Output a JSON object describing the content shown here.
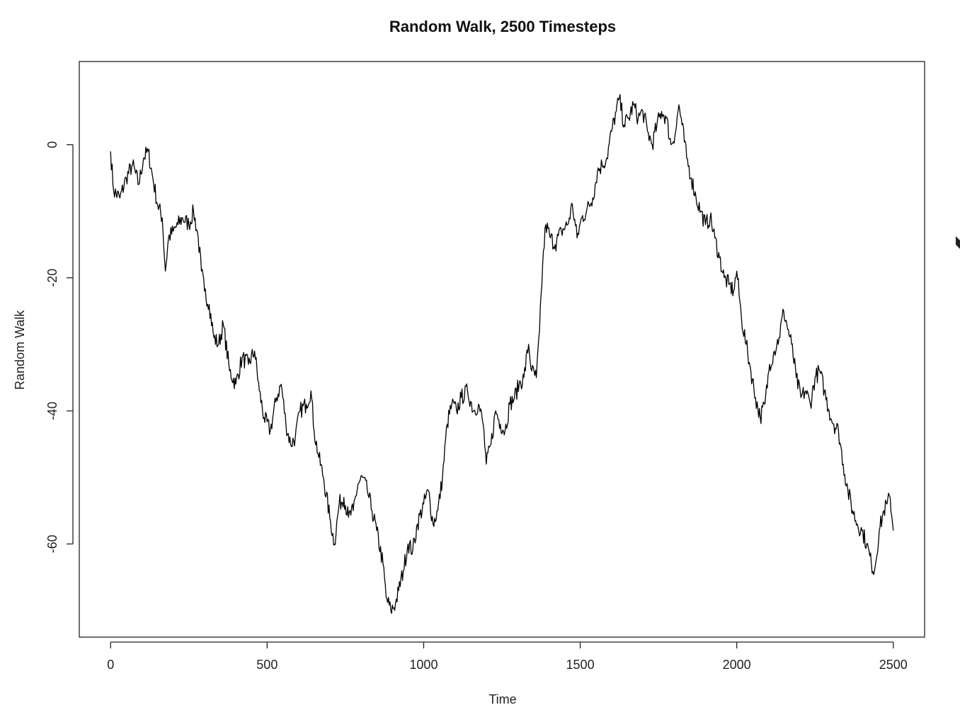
{
  "chart_data": {
    "type": "line",
    "title": "Random Walk, 2500 Timesteps",
    "xlabel": "Time",
    "ylabel": "Random Walk",
    "xlim": [
      -100,
      2600
    ],
    "ylim": [
      -74,
      12.5
    ],
    "xticks": [
      0,
      500,
      1000,
      1500,
      2000,
      2500
    ],
    "xtick_labels": [
      "0",
      "500",
      "1000",
      "1500",
      "2000",
      "2500"
    ],
    "yticks": [
      -60,
      -40,
      -20,
      0
    ],
    "ytick_labels": [
      "-60",
      "-40",
      "-20",
      "0"
    ],
    "grid": false,
    "legend": "none",
    "line_color": "#000000",
    "series": [
      {
        "x": [
          0,
          10,
          30,
          50,
          70,
          90,
          105,
          120,
          135,
          150,
          165,
          175,
          185,
          200,
          215,
          230,
          250,
          265,
          280,
          290,
          300,
          315,
          330,
          345,
          360,
          380,
          400,
          420,
          440,
          460,
          475,
          490,
          510,
          530,
          545,
          560,
          575,
          590,
          605,
          625,
          640,
          650,
          665,
          680,
          700,
          715,
          730,
          745,
          760,
          775,
          790,
          805,
          820,
          835,
          850,
          870,
          880,
          895,
          910,
          920,
          935,
          950,
          965,
          980,
          1000,
          1015,
          1030,
          1045,
          1060,
          1075,
          1090,
          1105,
          1120,
          1140,
          1160,
          1175,
          1190,
          1200,
          1215,
          1230,
          1245,
          1260,
          1275,
          1290,
          1305,
          1320,
          1335,
          1345,
          1360,
          1370,
          1380,
          1390,
          1405,
          1420,
          1440,
          1460,
          1475,
          1490,
          1505,
          1520,
          1540,
          1555,
          1570,
          1585,
          1600,
          1615,
          1625,
          1640,
          1655,
          1670,
          1685,
          1700,
          1715,
          1730,
          1745,
          1760,
          1775,
          1790,
          1805,
          1815,
          1825,
          1840,
          1855,
          1870,
          1885,
          1900,
          1915,
          1930,
          1945,
          1960,
          1975,
          1990,
          2000,
          2015,
          2030,
          2045,
          2060,
          2075,
          2090,
          2105,
          2120,
          2135,
          2150,
          2160,
          2175,
          2190,
          2205,
          2220,
          2235,
          2250,
          2265,
          2280,
          2295,
          2310,
          2325,
          2340,
          2355,
          2370,
          2385,
          2400,
          2415,
          2430,
          2440,
          2455,
          2470,
          2480,
          2490,
          2500
        ],
        "y": [
          -1,
          -7,
          -8,
          -5,
          -3,
          -6,
          -2,
          -1,
          -5,
          -9,
          -11,
          -19,
          -14,
          -13,
          -12,
          -11,
          -12,
          -10,
          -14,
          -19,
          -22,
          -24,
          -29,
          -30,
          -27,
          -34,
          -36,
          -32,
          -33,
          -31,
          -37,
          -41,
          -43,
          -38,
          -36,
          -42,
          -45,
          -44,
          -40,
          -39,
          -37,
          -43,
          -47,
          -50,
          -56,
          -60,
          -54,
          -53,
          -56,
          -55,
          -51,
          -50,
          -52,
          -55,
          -58,
          -63,
          -68,
          -70,
          -69,
          -67,
          -64,
          -60,
          -61,
          -57,
          -54,
          -52,
          -57,
          -55,
          -50,
          -42,
          -39,
          -40,
          -38,
          -37,
          -40,
          -39,
          -42,
          -48,
          -45,
          -40,
          -42,
          -43,
          -39,
          -38,
          -36,
          -35,
          -30,
          -34,
          -35,
          -28,
          -18,
          -12,
          -14,
          -15,
          -13,
          -12,
          -9,
          -14,
          -11,
          -10,
          -8,
          -4,
          -3,
          -2,
          2,
          5,
          7,
          3,
          4,
          6,
          4,
          5,
          2,
          0,
          3,
          5,
          4,
          0,
          2,
          6,
          3,
          -2,
          -5,
          -8,
          -10,
          -12,
          -11,
          -14,
          -17,
          -20,
          -21,
          -22,
          -19,
          -26,
          -30,
          -34,
          -38,
          -41,
          -39,
          -33,
          -31,
          -29,
          -25,
          -27,
          -30,
          -35,
          -38,
          -37,
          -39,
          -35,
          -34,
          -37,
          -40,
          -42,
          -43,
          -48,
          -52,
          -55,
          -57,
          -58,
          -60,
          -63,
          -64,
          -58,
          -55,
          -54,
          -53,
          -58
        ]
      }
    ]
  }
}
